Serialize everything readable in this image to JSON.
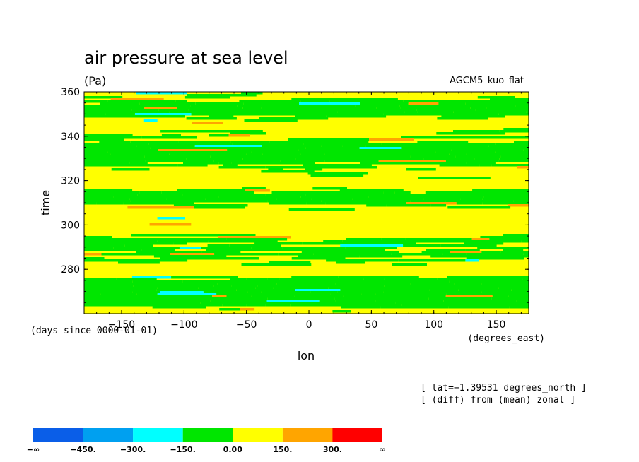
{
  "chart_data": {
    "type": "heatmap",
    "title": "air pressure at sea level",
    "subtitle": "(Pa)",
    "model": "AGCM5_kuo_flat",
    "xlabel": "lon",
    "xunits": "(degrees_east)",
    "ylabel": "time",
    "yunits": "(days since 0000-01-01)",
    "xlim": [
      -180,
      176
    ],
    "ylim": [
      260,
      360
    ],
    "xticks": [
      -150,
      -100,
      -50,
      0,
      50,
      100,
      150
    ],
    "xtick_labels": [
      "−150",
      "−100",
      "−50",
      "0",
      "50",
      "100",
      "150"
    ],
    "yticks": [
      280,
      300,
      320,
      340,
      360
    ],
    "ytick_labels": [
      "280",
      "300",
      "320",
      "340",
      "360"
    ],
    "info_lines": [
      "[ lat=−1.39531 degrees_north ]",
      "[ (diff) from (mean) zonal ]"
    ],
    "colorbar": {
      "colors": [
        "#0a5ee8",
        "#00a0f0",
        "#00ffff",
        "#00e600",
        "#ffff00",
        "#ffa500",
        "#ff0000"
      ],
      "labels": [
        "−∞",
        "−450.",
        "−300.",
        "−150.",
        "0.00",
        "150.",
        "300.",
        "∞"
      ]
    },
    "dominant_classes": [
      "-150 to 0",
      "0 to 150"
    ],
    "occasional_classes": [
      "-300 to -150",
      "150 to 300"
    ]
  }
}
